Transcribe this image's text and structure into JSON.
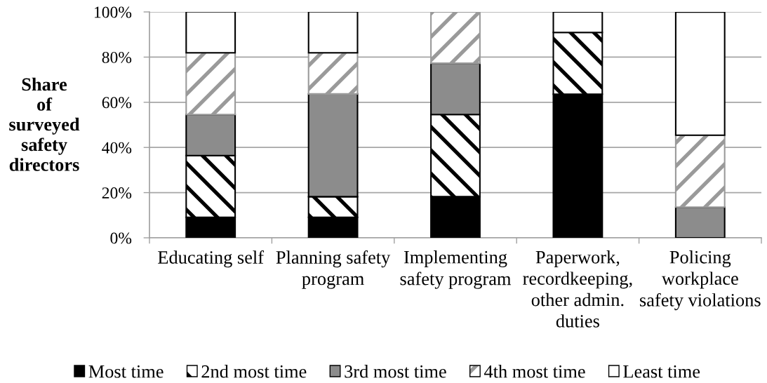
{
  "chart_data": {
    "type": "bar",
    "stacked": true,
    "ylabel": "Share\nof\nsurveyed\nsafety\ndirectors",
    "categories": [
      "Educating self",
      "Planning safety\nprogram",
      "Implementing\nsafety program",
      "Paperwork,\nrecordkeeping,\nother admin.\nduties",
      "Policing\nworkplace\nsafety violations"
    ],
    "series": [
      {
        "name": "Most time",
        "color": "#000000",
        "values": [
          9.1,
          9.1,
          18.2,
          63.6,
          0
        ]
      },
      {
        "name": "2nd most time",
        "color": "#000000",
        "values": [
          27.3,
          9.1,
          36.4,
          27.3,
          0
        ]
      },
      {
        "name": "3rd most time",
        "color": "#8c8c8c",
        "values": [
          18.2,
          45.5,
          22.7,
          0,
          13.6
        ]
      },
      {
        "name": "4th most time",
        "color": "#9a9a9a",
        "values": [
          27.3,
          18.2,
          22.7,
          0,
          31.8
        ]
      },
      {
        "name": "Least time",
        "color": "#ffffff",
        "values": [
          18.2,
          18.2,
          0,
          9.1,
          54.5
        ]
      }
    ],
    "ylim": [
      0,
      100
    ],
    "yticks": [
      {
        "value": 0,
        "label": "0%"
      },
      {
        "value": 20,
        "label": "20%"
      },
      {
        "value": 40,
        "label": "40%"
      },
      {
        "value": 60,
        "label": "60%"
      },
      {
        "value": 80,
        "label": "80%"
      },
      {
        "value": 100,
        "label": "100%"
      }
    ],
    "grid": "y",
    "legend": "bottom"
  }
}
